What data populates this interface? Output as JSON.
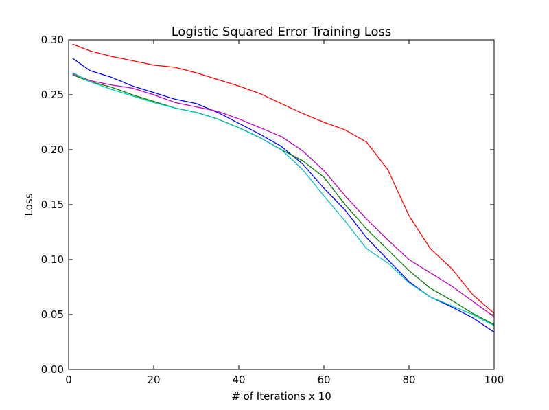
{
  "chart_data": {
    "type": "line",
    "title": "Logistic Squared Error Training Loss",
    "xlabel": "# of Iterations x 10",
    "ylabel": "Loss",
    "xlim": [
      0,
      100
    ],
    "ylim": [
      0.0,
      0.3
    ],
    "xticks": [
      0,
      20,
      40,
      60,
      80,
      100
    ],
    "xtick_labels": [
      "0",
      "20",
      "40",
      "60",
      "80",
      "100"
    ],
    "yticks": [
      0.0,
      0.05,
      0.1,
      0.15,
      0.2,
      0.25,
      0.3
    ],
    "ytick_labels": [
      "0.00",
      "0.05",
      "0.10",
      "0.15",
      "0.20",
      "0.25",
      "0.30"
    ],
    "grid": false,
    "legend": null,
    "x": [
      1,
      5,
      10,
      15,
      20,
      25,
      30,
      35,
      40,
      45,
      50,
      55,
      60,
      65,
      70,
      75,
      80,
      85,
      90,
      95,
      100
    ],
    "series": [
      {
        "color": "#ff0000",
        "values": [
          0.296,
          0.29,
          0.285,
          0.281,
          0.277,
          0.275,
          0.27,
          0.264,
          0.258,
          0.251,
          0.242,
          0.233,
          0.225,
          0.218,
          0.207,
          0.182,
          0.14,
          0.11,
          0.092,
          0.068,
          0.051
        ]
      },
      {
        "color": "#0000ff",
        "values": [
          0.283,
          0.272,
          0.266,
          0.258,
          0.252,
          0.246,
          0.242,
          0.234,
          0.224,
          0.214,
          0.203,
          0.187,
          0.165,
          0.145,
          0.12,
          0.1,
          0.08,
          0.066,
          0.057,
          0.047,
          0.034
        ]
      },
      {
        "color": "#bf00bf",
        "values": [
          0.269,
          0.263,
          0.259,
          0.256,
          0.25,
          0.243,
          0.239,
          0.235,
          0.228,
          0.22,
          0.212,
          0.199,
          0.181,
          0.158,
          0.137,
          0.118,
          0.1,
          0.088,
          0.076,
          0.062,
          0.048
        ]
      },
      {
        "color": "#008000",
        "values": [
          0.268,
          0.262,
          0.257,
          0.25,
          0.244,
          0.238,
          0.234,
          0.228,
          0.22,
          0.211,
          0.2,
          0.19,
          0.175,
          0.15,
          0.128,
          0.109,
          0.09,
          0.074,
          0.063,
          0.051,
          0.041
        ]
      },
      {
        "color": "#00bfbf",
        "values": [
          0.27,
          0.262,
          0.255,
          0.249,
          0.243,
          0.238,
          0.234,
          0.228,
          0.22,
          0.211,
          0.2,
          0.182,
          0.158,
          0.135,
          0.11,
          0.097,
          0.079,
          0.066,
          0.058,
          0.05,
          0.04
        ]
      }
    ]
  }
}
